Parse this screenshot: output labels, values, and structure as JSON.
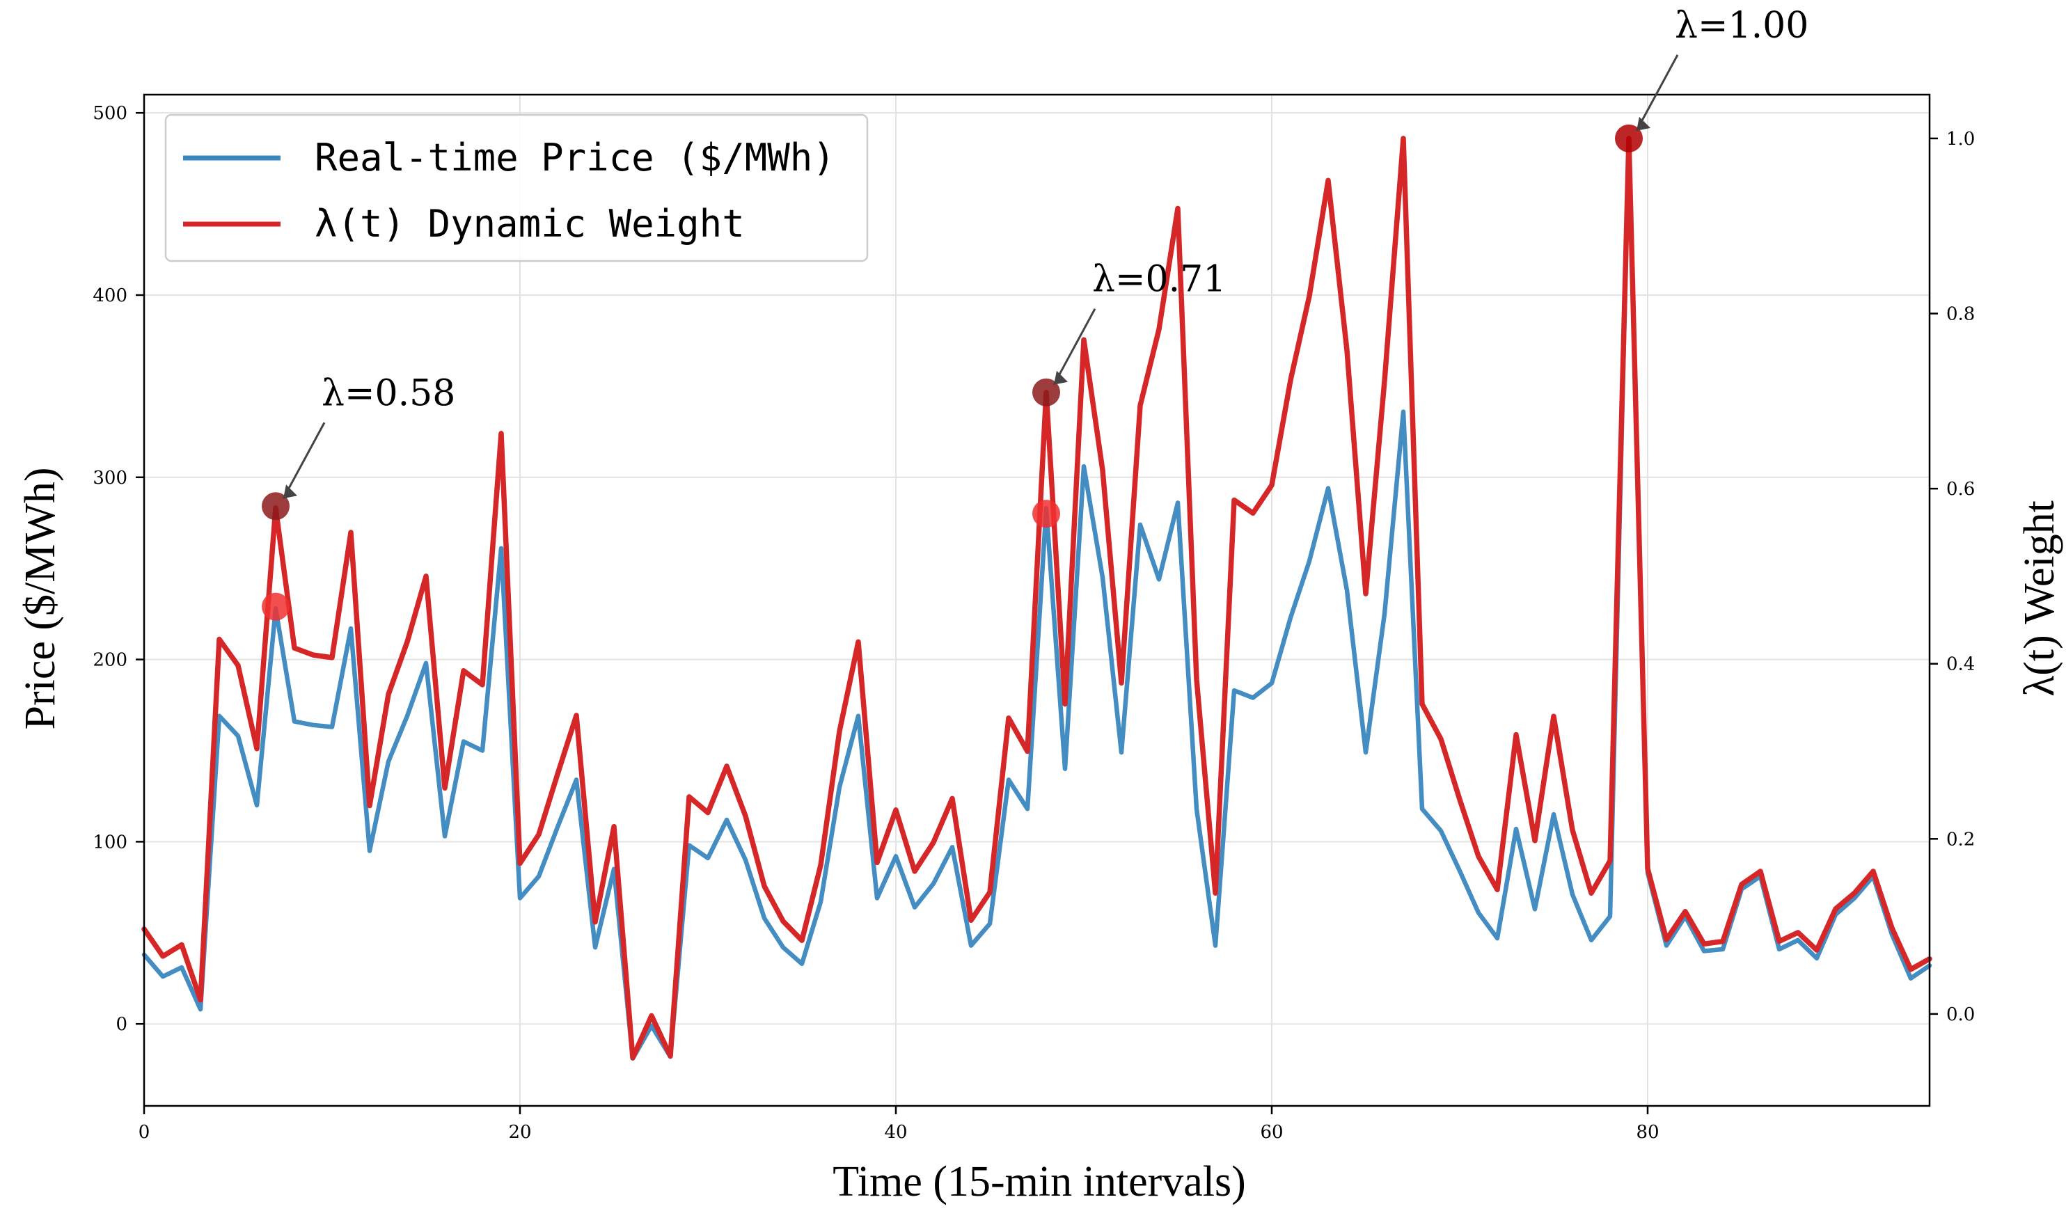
{
  "chart_data": {
    "type": "line",
    "xlabel": "Time (15-min intervals)",
    "ylabel_left": "Price ($/MWh)",
    "ylabel_right": "λ(t) Weight",
    "xlim": [
      0,
      95
    ],
    "ylim_left": [
      -45,
      510
    ],
    "ylim_right": [
      -0.105,
      1.05
    ],
    "x_ticks": [
      0,
      20,
      40,
      60,
      80
    ],
    "y_ticks_left": [
      0,
      100,
      200,
      300,
      400,
      500
    ],
    "y_ticks_right": [
      0.0,
      0.2,
      0.4,
      0.6,
      0.8,
      1.0
    ],
    "y_tick_labels_right": [
      "0.0",
      "0.2",
      "0.4",
      "0.6",
      "0.8",
      "1.0"
    ],
    "grid": true,
    "legend_position": "top-left",
    "series": [
      {
        "name": "Real-time Price ($/MWh)",
        "axis": "left",
        "color": "#3a87c0",
        "x": [
          0,
          1,
          2,
          3,
          4,
          5,
          6,
          7,
          8,
          9,
          10,
          11,
          12,
          13,
          14,
          15,
          16,
          17,
          18,
          19,
          20,
          21,
          22,
          23,
          24,
          25,
          26,
          27,
          28,
          29,
          30,
          31,
          32,
          33,
          34,
          35,
          36,
          37,
          38,
          39,
          40,
          41,
          42,
          43,
          44,
          45,
          46,
          47,
          48,
          49,
          50,
          51,
          52,
          53,
          54,
          55,
          56,
          57,
          58,
          59,
          60,
          61,
          62,
          63,
          64,
          65,
          66,
          67,
          68,
          69,
          70,
          71,
          72,
          73,
          74,
          75,
          76,
          77,
          78,
          79,
          80,
          81,
          82,
          83,
          84,
          85,
          86,
          87,
          88,
          89,
          90,
          91,
          92,
          93,
          94,
          95
        ],
        "values": [
          38,
          26,
          31,
          8,
          169,
          158,
          120,
          228,
          166,
          164,
          163,
          217,
          95,
          144,
          169,
          198,
          103,
          155,
          150,
          261,
          69,
          81,
          108,
          134,
          42,
          85,
          -19,
          -1,
          -18,
          98,
          91,
          112,
          90,
          58,
          42,
          33,
          67,
          130,
          169,
          69,
          92,
          64,
          77,
          97,
          43,
          55,
          134,
          118,
          283,
          140,
          306,
          245,
          149,
          274,
          244,
          286,
          118,
          43,
          183,
          179,
          187,
          223,
          254,
          294,
          238,
          149,
          225,
          336,
          118,
          106,
          84,
          61,
          47,
          107,
          63,
          115,
          71,
          46,
          59,
          486,
          83,
          43,
          59,
          40,
          41,
          74,
          81,
          41,
          46,
          36,
          60,
          69,
          81,
          49,
          25,
          32
        ]
      },
      {
        "name": "λ(t) Dynamic Weight",
        "axis": "right",
        "color": "#d62728",
        "x": [
          0,
          1,
          2,
          3,
          4,
          5,
          6,
          7,
          8,
          9,
          10,
          11,
          12,
          13,
          14,
          15,
          16,
          17,
          18,
          19,
          20,
          21,
          22,
          23,
          24,
          25,
          26,
          27,
          28,
          29,
          30,
          31,
          32,
          33,
          34,
          35,
          36,
          37,
          38,
          39,
          40,
          41,
          42,
          43,
          44,
          45,
          46,
          47,
          48,
          49,
          50,
          51,
          52,
          53,
          54,
          55,
          56,
          57,
          58,
          59,
          60,
          61,
          62,
          63,
          64,
          65,
          66,
          67,
          68,
          69,
          70,
          71,
          72,
          73,
          74,
          75,
          76,
          77,
          78,
          79,
          80,
          81,
          82,
          83,
          84,
          85,
          86,
          87,
          88,
          89,
          90,
          91,
          92,
          93,
          94,
          95
        ],
        "values": [
          0.097,
          0.066,
          0.079,
          0.016,
          0.428,
          0.398,
          0.303,
          0.578,
          0.418,
          0.41,
          0.407,
          0.55,
          0.238,
          0.365,
          0.425,
          0.5,
          0.258,
          0.392,
          0.376,
          0.663,
          0.172,
          0.205,
          0.274,
          0.341,
          0.105,
          0.214,
          -0.05,
          -0.002,
          -0.048,
          0.248,
          0.23,
          0.283,
          0.226,
          0.146,
          0.106,
          0.084,
          0.17,
          0.323,
          0.425,
          0.173,
          0.233,
          0.163,
          0.196,
          0.246,
          0.107,
          0.139,
          0.338,
          0.3,
          0.71,
          0.354,
          0.77,
          0.621,
          0.378,
          0.695,
          0.782,
          0.92,
          0.382,
          0.138,
          0.587,
          0.572,
          0.604,
          0.724,
          0.82,
          0.952,
          0.758,
          0.48,
          0.723,
          1.0,
          0.354,
          0.314,
          0.245,
          0.18,
          0.142,
          0.319,
          0.198,
          0.34,
          0.21,
          0.138,
          0.175,
          1.0,
          0.166,
          0.085,
          0.117,
          0.08,
          0.083,
          0.148,
          0.163,
          0.083,
          0.093,
          0.073,
          0.12,
          0.138,
          0.163,
          0.098,
          0.051,
          0.063
        ]
      }
    ],
    "markers": [
      {
        "x": 7,
        "y": 0.58,
        "axis": "right",
        "color": "#8b1a1a"
      },
      {
        "x": 48,
        "y": 0.71,
        "axis": "right",
        "color": "#8b1a1a"
      },
      {
        "x": 79,
        "y": 1.0,
        "axis": "right",
        "color": "#b00000"
      },
      {
        "x": 7,
        "y": 229,
        "axis": "left",
        "color": "#f03030"
      },
      {
        "x": 48,
        "y": 280,
        "axis": "left",
        "color": "#f03030"
      }
    ],
    "annotations": [
      {
        "text": "λ=0.58",
        "x": 7,
        "y": 0.58
      },
      {
        "text": "λ=0.71",
        "x": 48,
        "y": 0.71
      },
      {
        "text": "λ=1.00",
        "x": 79,
        "y": 1.0
      }
    ]
  }
}
